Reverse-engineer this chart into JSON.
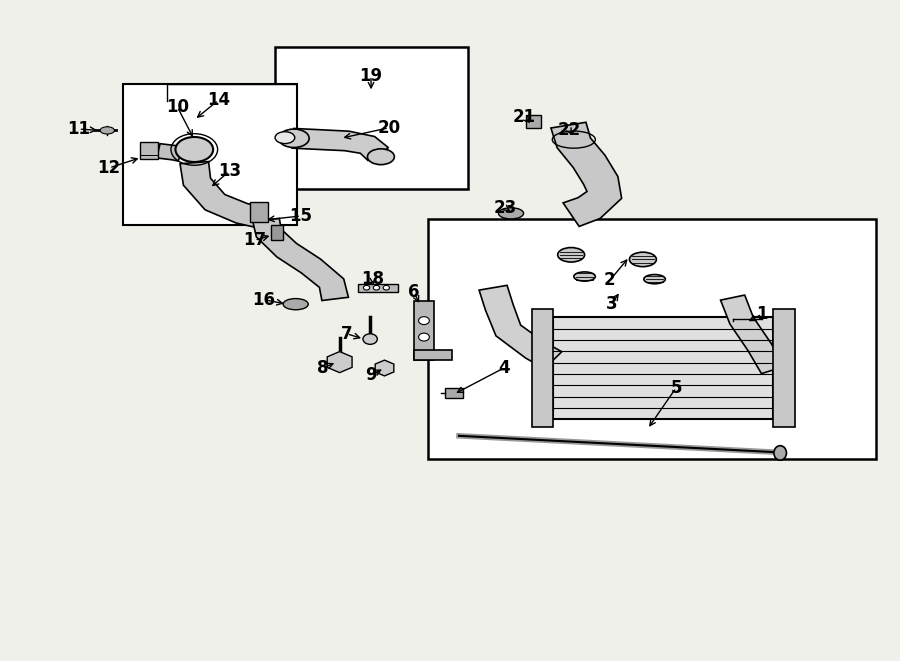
{
  "bg_color": "#f0f0eb",
  "box_color": "#ffffff",
  "line_color": "#000000",
  "fig_width": 9.0,
  "fig_height": 6.61
}
